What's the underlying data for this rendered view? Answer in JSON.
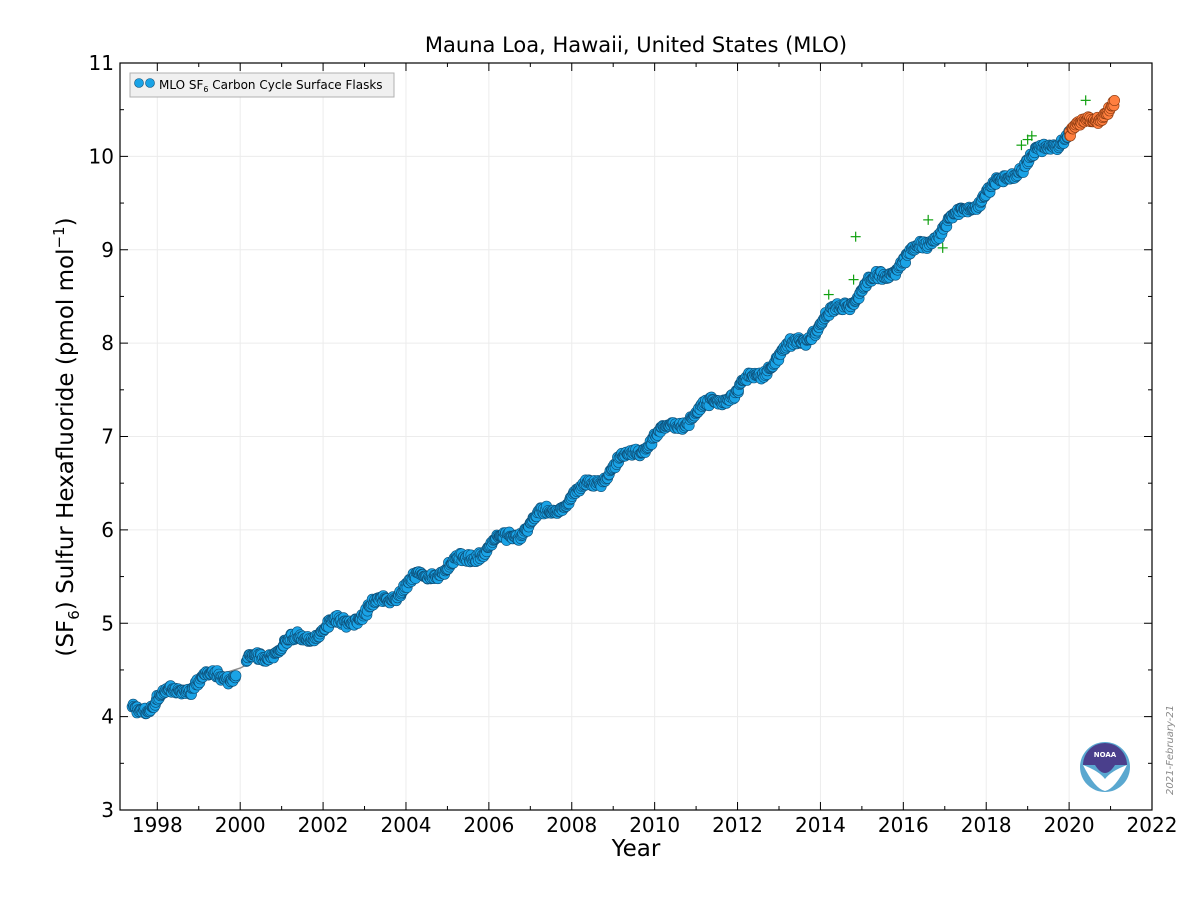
{
  "chart_data": {
    "type": "scatter",
    "title": "Mauna Loa, Hawaii, United States (MLO)",
    "xlabel": "Year",
    "ylabel_pre": "(SF",
    "ylabel_sub": "6",
    "ylabel_mid": ") Sulfur Hexafluoride (pmol mol",
    "ylabel_sup": "−1",
    "ylabel_post": ")",
    "xlim": [
      1997.1,
      2022
    ],
    "ylim": [
      3,
      11
    ],
    "xticks": [
      1998,
      2000,
      2002,
      2004,
      2006,
      2008,
      2010,
      2012,
      2014,
      2016,
      2018,
      2020,
      2022
    ],
    "yticks": [
      3,
      4,
      5,
      6,
      7,
      8,
      9,
      10,
      11
    ],
    "grid": true,
    "legend": {
      "placement": "top-left",
      "label_pre": "MLO SF",
      "label_sub": "6",
      "label_post": " Carbon Cycle Surface Flasks"
    },
    "date_stamp": "2021-February-21",
    "colors": {
      "main": "#1aa3e6",
      "preliminary": "#ff7f3f",
      "rejected": "#10a010",
      "trend": "#8c8c8c"
    },
    "series": [
      {
        "style": "flask points",
        "x": [
          1997.4,
          1997.8,
          1998.0,
          1998.5,
          1999.0,
          1999.5,
          1999.8,
          2000.2,
          2000.5,
          2001.0,
          2001.5,
          2002.0,
          2002.5,
          2003.0,
          2003.5,
          2004.0,
          2004.5,
          2005.0,
          2005.5,
          2006.0,
          2006.5,
          2007.0,
          2007.5,
          2008.0,
          2008.5,
          2009.0,
          2009.5,
          2010.0,
          2010.5,
          2011.0,
          2011.5,
          2012.0,
          2012.5,
          2013.0,
          2013.5,
          2014.0,
          2014.5,
          2015.0,
          2015.5,
          2016.0,
          2016.5,
          2017.0,
          2017.5,
          2018.0,
          2018.5,
          2019.0,
          2019.5,
          2020.0
        ],
        "y": [
          4.08,
          4.12,
          4.18,
          4.28,
          4.38,
          4.43,
          4.46,
          4.58,
          4.65,
          4.75,
          4.84,
          4.93,
          5.02,
          5.1,
          5.25,
          5.4,
          5.5,
          5.6,
          5.7,
          5.82,
          5.93,
          6.06,
          6.2,
          6.35,
          6.5,
          6.66,
          6.82,
          6.98,
          7.12,
          7.25,
          7.38,
          7.5,
          7.65,
          7.86,
          8.02,
          8.2,
          8.38,
          8.56,
          8.72,
          8.88,
          9.06,
          9.25,
          9.43,
          9.6,
          9.78,
          9.95,
          10.1,
          10.24
        ]
      },
      {
        "style": "preliminary points",
        "x": [
          2020.0,
          2020.3,
          2020.6,
          2020.9,
          2021.1
        ],
        "y": [
          10.24,
          10.32,
          10.42,
          10.5,
          10.56
        ]
      },
      {
        "style": "rejected points",
        "x": [
          2014.2,
          2014.8,
          2014.85,
          2016.6,
          2016.95,
          2018.85,
          2019.0,
          2019.1,
          2020.4
        ],
        "y": [
          8.52,
          8.68,
          9.14,
          9.32,
          9.02,
          10.12,
          10.18,
          10.22,
          10.6
        ]
      },
      {
        "style": "smoothed trend line",
        "x": [
          1997.4,
          1998.0,
          1999.0,
          2000.0,
          2001.0,
          2002.0,
          2003.0,
          2004.0,
          2005.0,
          2006.0,
          2007.0,
          2008.0,
          2009.0,
          2010.0,
          2011.0,
          2012.0,
          2013.0,
          2014.0,
          2015.0,
          2016.0,
          2017.0,
          2018.0,
          2019.0,
          2020.0,
          2021.1
        ],
        "y": [
          4.08,
          4.18,
          4.38,
          4.52,
          4.75,
          4.93,
          5.1,
          5.4,
          5.6,
          5.82,
          6.06,
          6.35,
          6.66,
          6.98,
          7.25,
          7.5,
          7.86,
          8.2,
          8.56,
          8.88,
          9.25,
          9.6,
          9.95,
          10.24,
          10.56
        ]
      }
    ]
  }
}
